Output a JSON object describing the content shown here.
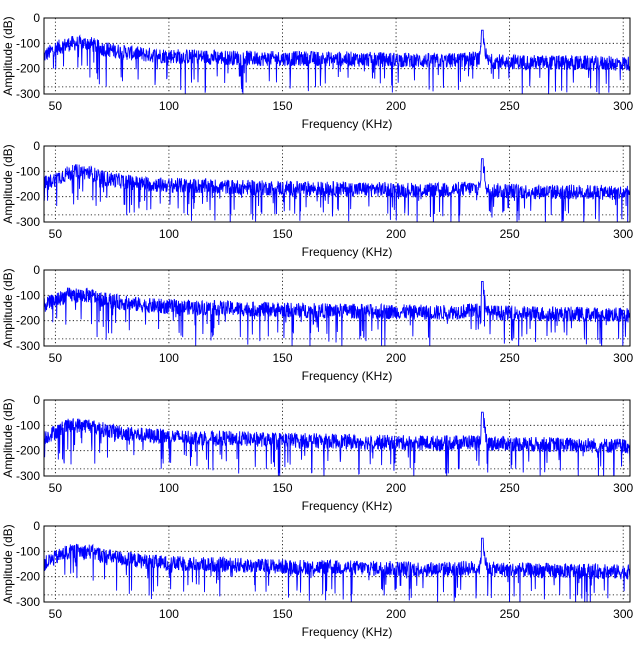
{
  "chart_data": [
    {
      "type": "line",
      "xlabel": "Frequency (KHz)",
      "ylabel": "Amplitude (dB)",
      "xlim": [
        45,
        303
      ],
      "ylim": [
        -300,
        0
      ],
      "xticks": [
        50,
        100,
        150,
        200,
        250,
        300
      ],
      "yticks": [
        0,
        -100,
        -200,
        -300
      ],
      "tick_labels_y": [
        "0",
        "-100",
        "-200",
        "-300"
      ],
      "tick_labels_x": [
        "50",
        "100",
        "150",
        "200",
        "250",
        "300"
      ],
      "grid": "dotted",
      "series": [
        {
          "color": "#0000ff",
          "x": [
            45,
            50,
            55,
            60,
            65,
            70,
            80,
            90,
            100,
            120,
            140,
            160,
            180,
            200,
            220,
            237,
            238,
            240,
            260,
            280,
            303
          ],
          "values": [
            -150,
            -120,
            -105,
            -95,
            -100,
            -120,
            -135,
            -145,
            -150,
            -155,
            -160,
            -160,
            -162,
            -165,
            -170,
            -160,
            -48,
            -170,
            -175,
            -178,
            -180
          ]
        }
      ]
    },
    {
      "type": "line",
      "xlabel": "Frequency (KHz)",
      "ylabel": "Amplitude (dB)",
      "xlim": [
        45,
        303
      ],
      "ylim": [
        -300,
        0
      ],
      "xticks": [
        50,
        100,
        150,
        200,
        250,
        300
      ],
      "yticks": [
        0,
        -100,
        -200,
        -300
      ],
      "tick_labels_y": [
        "0",
        "-100",
        "-200",
        "-300"
      ],
      "tick_labels_x": [
        "50",
        "100",
        "150",
        "200",
        "250",
        "300"
      ],
      "grid": "dotted",
      "series": [
        {
          "color": "#0000ff",
          "x": [
            45,
            50,
            55,
            60,
            65,
            70,
            80,
            90,
            100,
            120,
            140,
            160,
            180,
            200,
            220,
            237,
            238,
            240,
            260,
            280,
            303
          ],
          "values": [
            -150,
            -130,
            -110,
            -100,
            -105,
            -125,
            -140,
            -150,
            -155,
            -160,
            -165,
            -168,
            -170,
            -172,
            -175,
            -165,
            -50,
            -175,
            -180,
            -182,
            -185
          ]
        }
      ]
    },
    {
      "type": "line",
      "xlabel": "Frequency (KHz)",
      "ylabel": "Amplitude (dB)",
      "xlim": [
        45,
        303
      ],
      "ylim": [
        -300,
        0
      ],
      "xticks": [
        50,
        100,
        150,
        200,
        250,
        300
      ],
      "yticks": [
        0,
        -100,
        -200,
        -300
      ],
      "tick_labels_y": [
        "0",
        "-100",
        "-200",
        "-300"
      ],
      "tick_labels_x": [
        "50",
        "100",
        "150",
        "200",
        "250",
        "300"
      ],
      "grid": "dotted",
      "series": [
        {
          "color": "#0000ff",
          "x": [
            45,
            50,
            55,
            60,
            65,
            70,
            80,
            90,
            100,
            120,
            140,
            160,
            180,
            200,
            220,
            237,
            238,
            240,
            260,
            280,
            303
          ],
          "values": [
            -140,
            -120,
            -100,
            -95,
            -100,
            -115,
            -130,
            -140,
            -145,
            -150,
            -155,
            -160,
            -162,
            -165,
            -168,
            -160,
            -45,
            -168,
            -172,
            -175,
            -178
          ]
        }
      ]
    },
    {
      "type": "line",
      "xlabel": "Frequency (KHz)",
      "ylabel": "Amplitude (dB)",
      "xlim": [
        45,
        303
      ],
      "ylim": [
        -300,
        0
      ],
      "xticks": [
        50,
        100,
        150,
        200,
        250,
        300
      ],
      "yticks": [
        0,
        -100,
        -200,
        -300
      ],
      "tick_labels_y": [
        "0",
        "-100",
        "-200",
        "-300"
      ],
      "tick_labels_x": [
        "50",
        "100",
        "150",
        "200",
        "250",
        "300"
      ],
      "grid": "dotted",
      "series": [
        {
          "color": "#0000ff",
          "x": [
            45,
            50,
            55,
            60,
            65,
            70,
            80,
            90,
            100,
            120,
            140,
            160,
            180,
            200,
            220,
            237,
            238,
            240,
            260,
            280,
            303
          ],
          "values": [
            -150,
            -125,
            -105,
            -95,
            -100,
            -115,
            -130,
            -140,
            -145,
            -150,
            -155,
            -160,
            -165,
            -168,
            -170,
            -165,
            -48,
            -170,
            -175,
            -178,
            -182
          ]
        }
      ]
    },
    {
      "type": "line",
      "xlabel": "Frequency (KHz)",
      "ylabel": "Amplitude (dB)",
      "xlim": [
        45,
        303
      ],
      "ylim": [
        -300,
        0
      ],
      "xticks": [
        50,
        100,
        150,
        200,
        250,
        300
      ],
      "yticks": [
        0,
        -100,
        -200,
        -300
      ],
      "tick_labels_y": [
        "0",
        "-100",
        "-200",
        "-300"
      ],
      "tick_labels_x": [
        "50",
        "100",
        "150",
        "200",
        "250",
        "300"
      ],
      "grid": "dotted",
      "series": [
        {
          "color": "#0000ff",
          "x": [
            45,
            50,
            55,
            60,
            65,
            70,
            80,
            90,
            100,
            120,
            140,
            160,
            180,
            200,
            220,
            237,
            238,
            240,
            260,
            280,
            303
          ],
          "values": [
            -150,
            -125,
            -105,
            -95,
            -100,
            -115,
            -130,
            -140,
            -148,
            -152,
            -158,
            -162,
            -165,
            -168,
            -170,
            -165,
            -48,
            -170,
            -175,
            -178,
            -182
          ]
        }
      ]
    }
  ]
}
